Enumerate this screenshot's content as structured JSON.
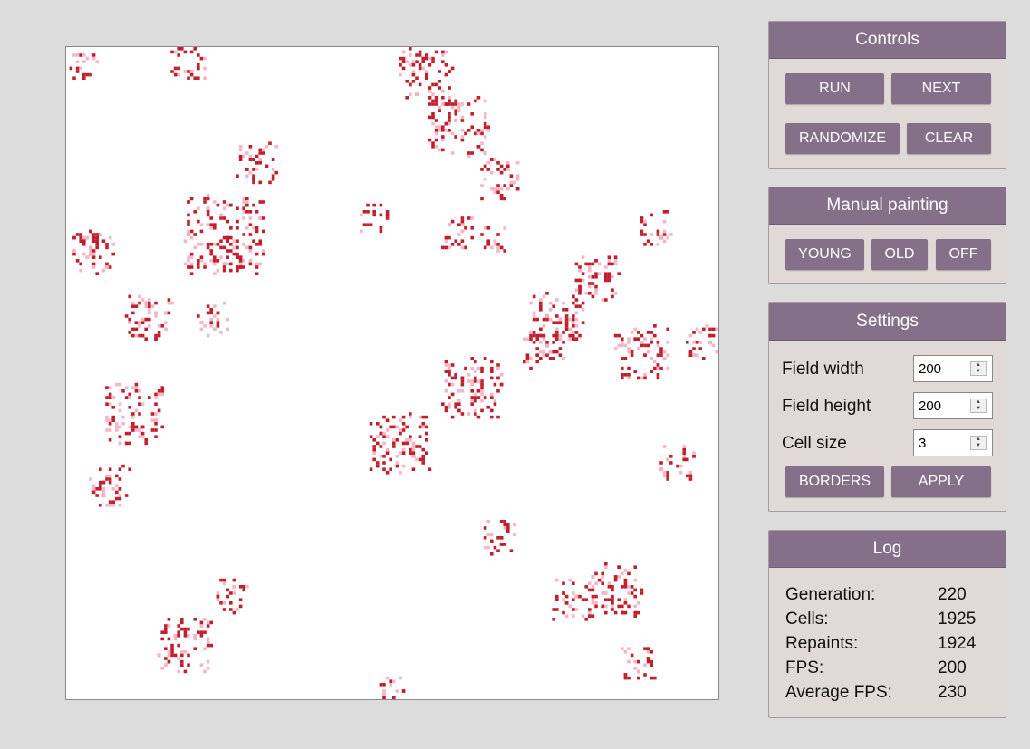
{
  "controls": {
    "title": "Controls",
    "run": "RUN",
    "next": "NEXT",
    "randomize": "RANDOMIZE",
    "clear": "CLEAR"
  },
  "painting": {
    "title": "Manual painting",
    "young": "YOUNG",
    "old": "OLD",
    "off": "OFF"
  },
  "settings": {
    "title": "Settings",
    "field_width_label": "Field width",
    "field_width": "200",
    "field_height_label": "Field height",
    "field_height": "200",
    "cell_size_label": "Cell size",
    "cell_size": "3",
    "borders": "BORDERS",
    "apply": "APPLY"
  },
  "log": {
    "title": "Log",
    "generation_label": "Generation:",
    "generation": "220",
    "cells_label": "Cells:",
    "cells": "1925",
    "repaints_label": "Repaints:",
    "repaints": "1924",
    "fps_label": "FPS:",
    "fps": "200",
    "avg_fps_label": "Average FPS:",
    "avg_fps": "230"
  },
  "colors": {
    "young_cell": "#f5b7c5",
    "old_cell": "#c0202e",
    "panel_header": "#847088",
    "panel_body": "#e1d9d5"
  }
}
